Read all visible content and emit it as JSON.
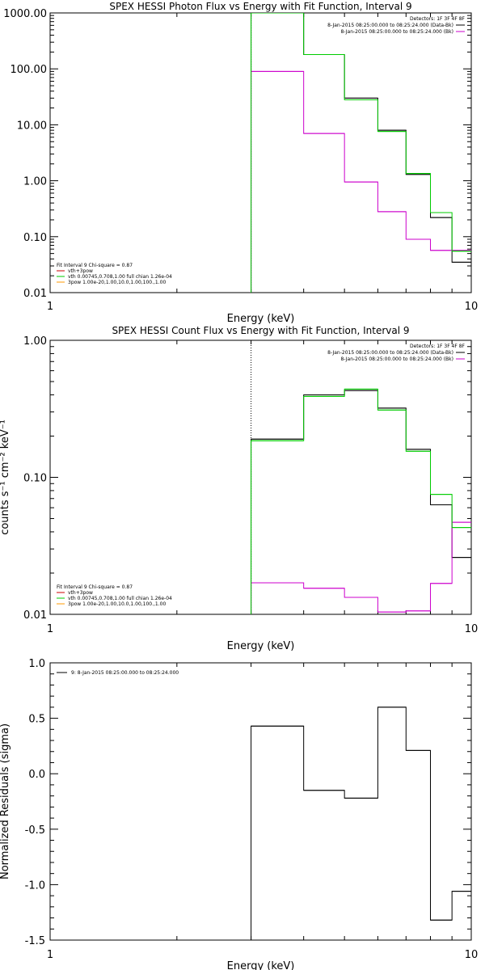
{
  "colors": {
    "data": "#000000",
    "fit_total": "#00cc00",
    "fit_vth": "#00cc00",
    "fit_bkg": "#cc00cc",
    "legend_red": "#cc0000",
    "legend_orange": "#ff9900",
    "background": "#ffffff"
  },
  "chart_data": [
    {
      "type": "line",
      "title": "SPEX HESSI Photon Flux vs Energy with Fit Function, Interval 9",
      "xlabel": "Energy (keV)",
      "ylabel": "",
      "xscale": "log",
      "yscale": "log",
      "xlim": [
        1,
        10
      ],
      "ylim": [
        0.01,
        1000
      ],
      "xticklabels": [
        "1",
        "10"
      ],
      "yticklabels": [
        "0.01",
        "0.10",
        "1.00",
        "10.00",
        "100.00",
        "1000.00"
      ],
      "energy_edges": [
        3.0,
        4.0,
        5.0,
        6.0,
        7.0,
        8.0,
        9.0,
        10.0
      ],
      "series": [
        {
          "name": "8-Jan-2015 08:25:00.000 to 08:25:24.000 (Data-Bk)",
          "color": "#000000",
          "values": [
            1000,
            180,
            30,
            8,
            1.3,
            0.22,
            0.035
          ]
        },
        {
          "name": "8-Jan-2015 08:25:00.000 to 08:25:24.000 (Bk)",
          "color": "#cc00cc",
          "values": [
            90,
            7,
            0.95,
            0.28,
            0.09,
            0.057,
            0.057
          ]
        },
        {
          "name": "vth 0.00745,0.708,1.00  full chian 1.26e-04",
          "color": "#00cc00",
          "values": [
            1000,
            180,
            28,
            7.6,
            1.35,
            0.27,
            0.055
          ]
        }
      ],
      "vline_x": 3.0,
      "legend_top": {
        "header": "Detectors: 1F 3F 4F 8F",
        "lines": [
          {
            "text": "8-Jan-2015 08:25:00.000 to 08:25:24.000 (Data-Bk)",
            "color": "#000000"
          },
          {
            "text": "8-Jan-2015 08:25:00.000 to 08:25:24.000 (Bk)",
            "color": "#cc00cc"
          }
        ]
      },
      "legend_bottom": {
        "header": "Fit Interval 9   Chi-square = 0.87",
        "lines": [
          {
            "text": "vth+3pow",
            "color": "#cc0000"
          },
          {
            "text": "vth 0.00745,0.708,1.00  full chian 1.26e-04",
            "color": "#00cc00"
          },
          {
            "text": "3pow 1.00e-20,1.00,10.0,1.00,100.,1.00",
            "color": "#ff9900"
          }
        ]
      }
    },
    {
      "type": "line",
      "title": "SPEX HESSI Count Flux vs Energy with Fit Function, Interval 9",
      "xlabel": "Energy (keV)",
      "ylabel": "counts s⁻¹ cm⁻² keV⁻¹",
      "xscale": "log",
      "yscale": "log",
      "xlim": [
        1,
        10
      ],
      "ylim": [
        0.01,
        1.0
      ],
      "xticklabels": [
        "1",
        "10"
      ],
      "yticklabels": [
        "0.01",
        "0.10",
        "1.00"
      ],
      "energy_edges": [
        3.0,
        4.0,
        5.0,
        6.0,
        7.0,
        8.0,
        9.0,
        10.0
      ],
      "series": [
        {
          "name": "8-Jan-2015 08:25:00.000 to 08:25:24.000 (Data-Bk)",
          "color": "#000000",
          "values": [
            0.19,
            0.4,
            0.43,
            0.32,
            0.16,
            0.063,
            0.026
          ]
        },
        {
          "name": "8-Jan-2015 08:25:00.000 to 08:25:24.000 (Bk)",
          "color": "#cc00cc",
          "values": [
            0.017,
            0.0155,
            0.0133,
            0.0104,
            0.0106,
            0.0168,
            0.047
          ]
        },
        {
          "name": "vth 0.00745,0.708,1.00  full chian 1.26e-04",
          "color": "#00cc00",
          "values": [
            0.185,
            0.39,
            0.44,
            0.31,
            0.155,
            0.075,
            0.043
          ]
        }
      ],
      "vline_x": 3.0,
      "legend_top": {
        "header": "Detectors: 1F 3F 4F 8F",
        "lines": [
          {
            "text": "8-Jan-2015 08:25:00.000 to 08:25:24.000 (Data-Bk)",
            "color": "#000000"
          },
          {
            "text": "8-Jan-2015 08:25:00.000 to 08:25:24.000 (Bk)",
            "color": "#cc00cc"
          }
        ]
      },
      "legend_bottom": {
        "header": "Fit Interval 9   Chi-square = 0.87",
        "lines": [
          {
            "text": "vth+3pow",
            "color": "#cc0000"
          },
          {
            "text": "vth 0.00745,0.708,1.00  full chian 1.26e-04",
            "color": "#00cc00"
          },
          {
            "text": "3pow 1.00e-20,1.00,10.0,1.00,100.,1.00",
            "color": "#ff9900"
          }
        ]
      }
    },
    {
      "type": "line",
      "title": "",
      "xlabel": "Energy (keV)",
      "ylabel": "Normalized Residuals (sigma)",
      "xscale": "log",
      "yscale": "linear",
      "xlim": [
        1,
        10
      ],
      "ylim": [
        -1.5,
        1.0
      ],
      "xticklabels": [
        "1",
        "10"
      ],
      "yticks": [
        -1.5,
        -1.0,
        -0.5,
        0.0,
        0.5,
        1.0
      ],
      "yticklabels": [
        "-1.5",
        "-1.0",
        "-0.5",
        "0.0",
        "0.5",
        "1.0"
      ],
      "energy_edges": [
        3.0,
        4.0,
        5.0,
        6.0,
        7.0,
        8.0,
        9.0,
        10.0
      ],
      "series": [
        {
          "name": "9: 8-Jan-2015 08:25:00.000 to 08:25:24.000",
          "color": "#000000",
          "values": [
            0.43,
            -0.15,
            -0.22,
            0.6,
            0.21,
            -1.32,
            -1.06
          ]
        }
      ],
      "legend_top": {
        "header": "",
        "lines": [
          {
            "text": "9: 8-Jan-2015 08:25:00.000 to 08:25:24.000",
            "color": "#000000"
          }
        ]
      }
    }
  ]
}
